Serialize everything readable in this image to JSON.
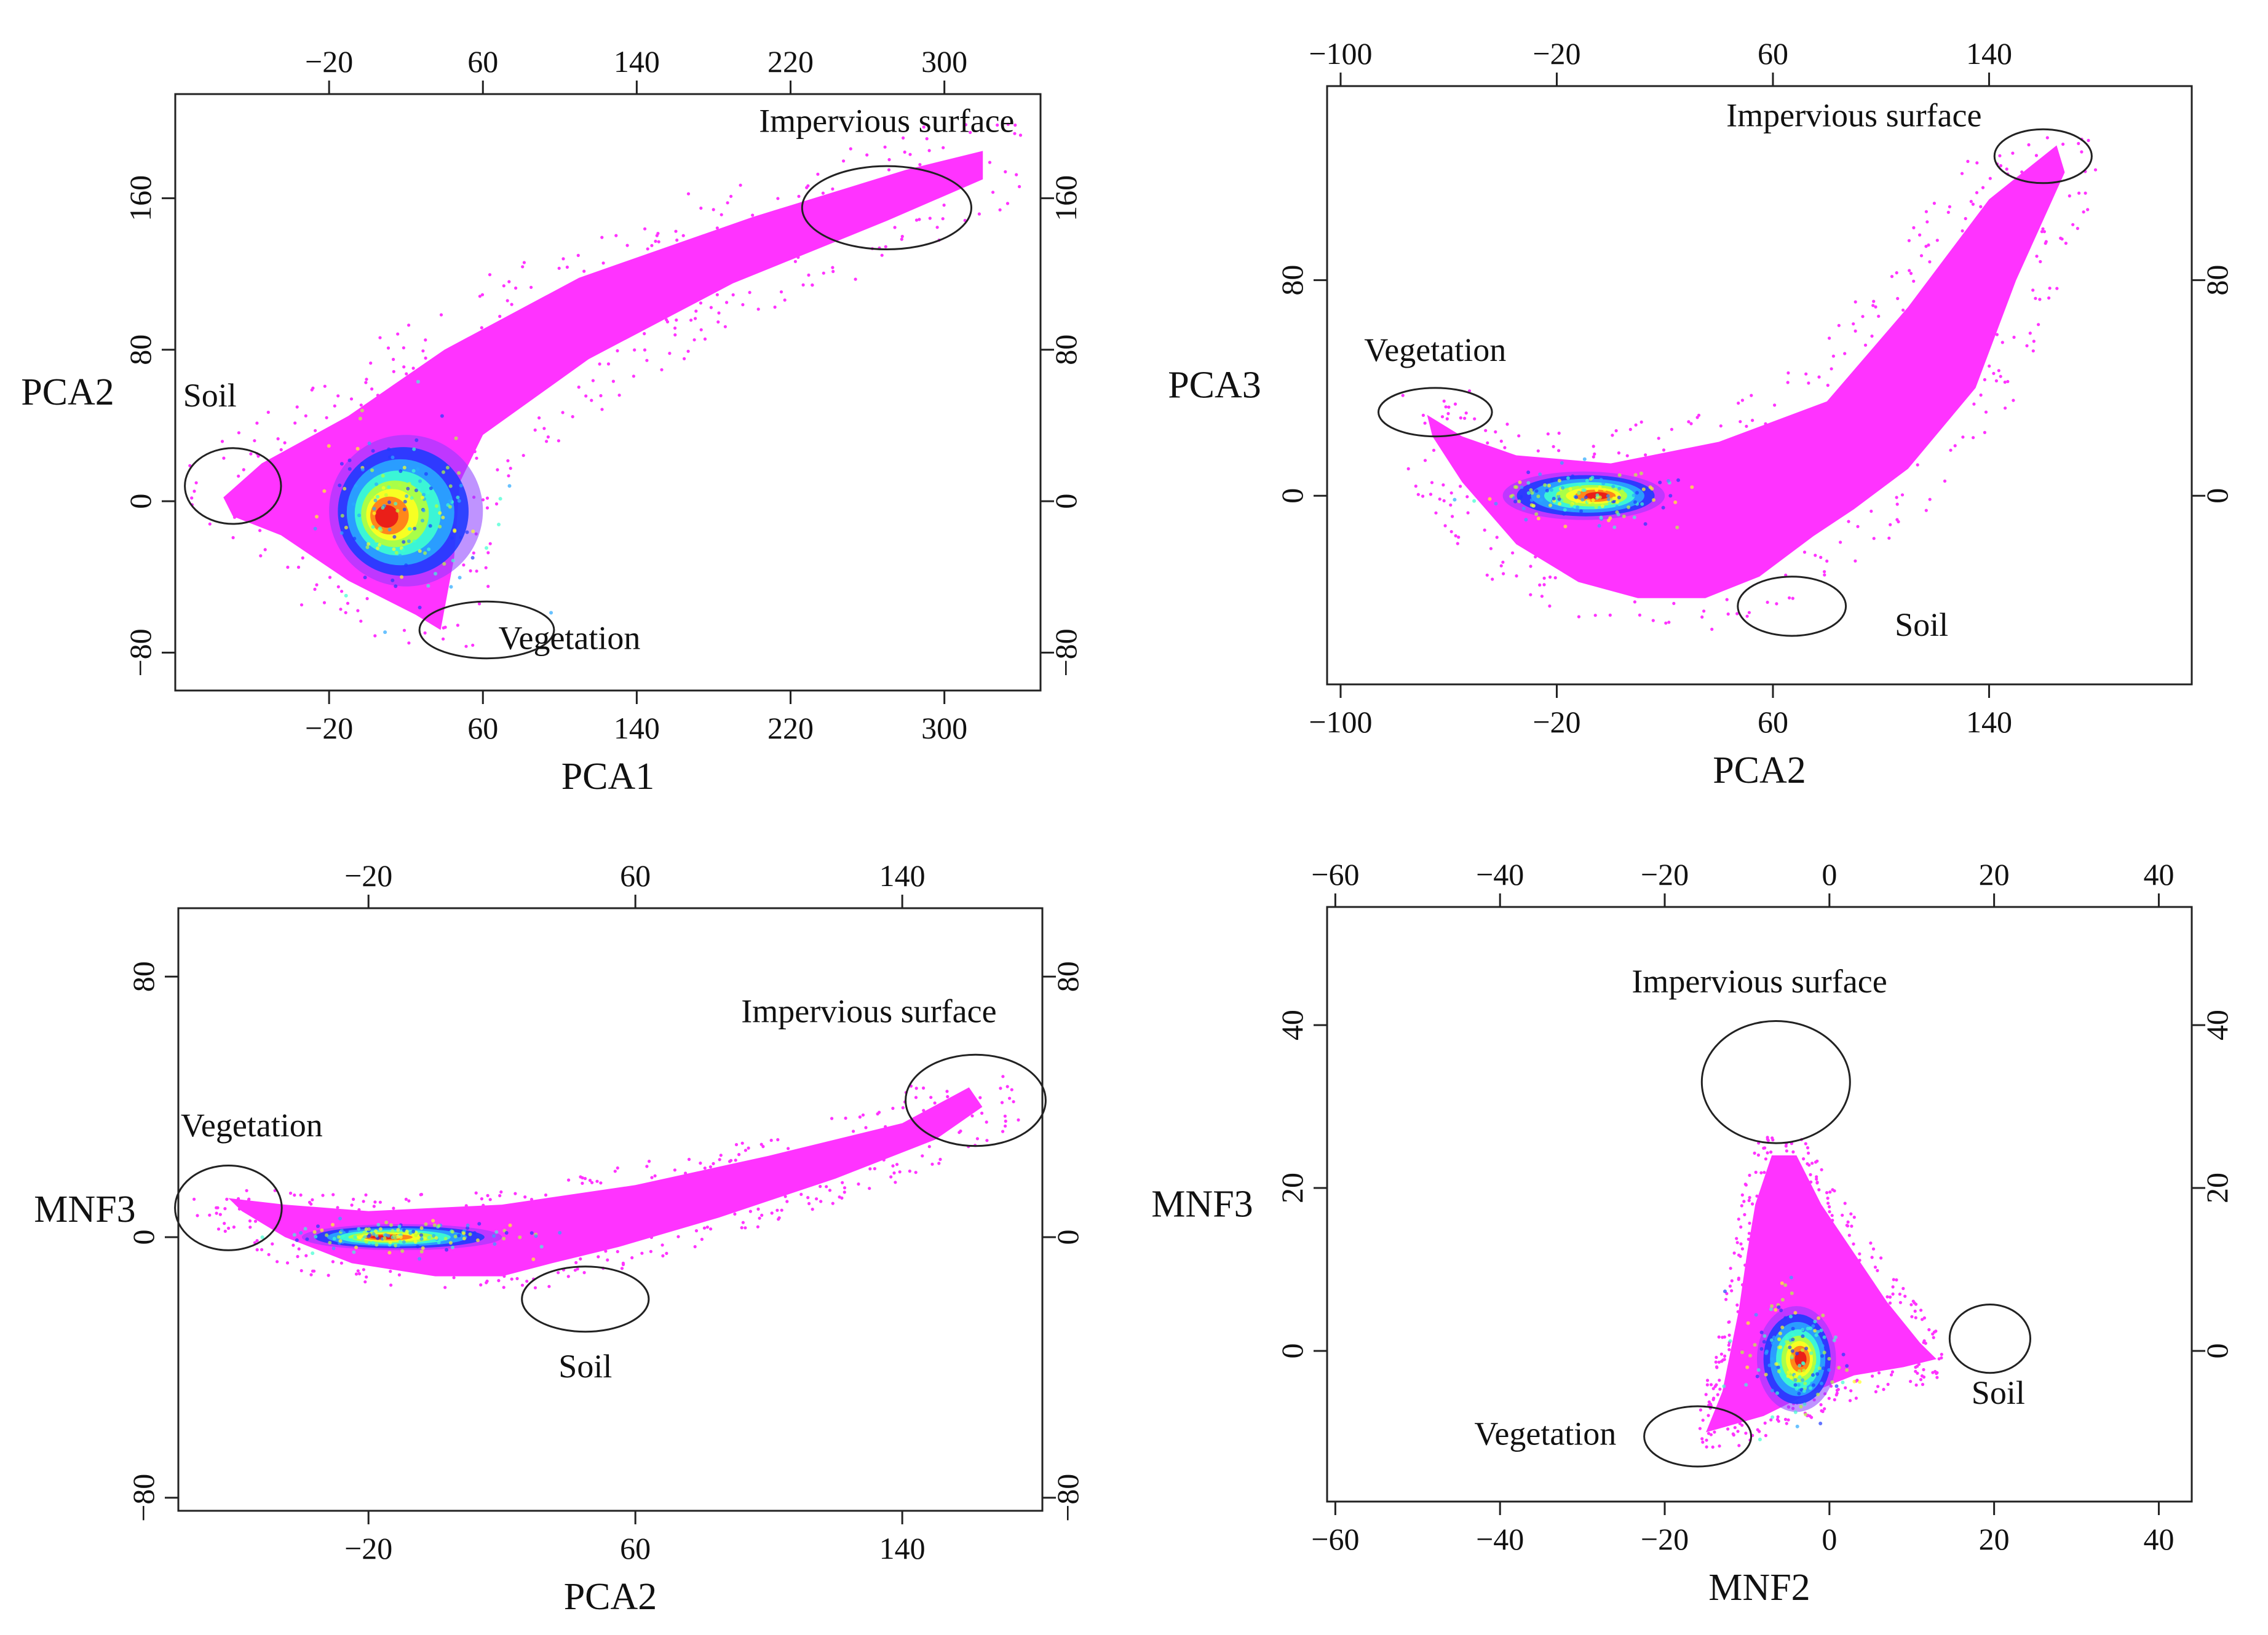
{
  "colors": {
    "density_scale": [
      "#ff33ff",
      "#8a3bff",
      "#1f3bff",
      "#2aa8ff",
      "#3dffd2",
      "#b6ff3a",
      "#ffff1f",
      "#ff7a1a",
      "#e8141a"
    ],
    "annotation_stroke": "#222222"
  },
  "chart_data": [
    {
      "type": "scatter",
      "subtype": "density-colored scatter",
      "xlabel": "PCA1",
      "ylabel": "PCA2",
      "xticks": [
        -20,
        60,
        140,
        220,
        300
      ],
      "yticks": [
        -80,
        0,
        80,
        160
      ],
      "xlim": [
        -100,
        350
      ],
      "ylim": [
        -100,
        215
      ],
      "grid": false,
      "cloud": {
        "main_polygon": [
          [
            -75,
            2
          ],
          [
            -55,
            20
          ],
          [
            -10,
            45
          ],
          [
            40,
            80
          ],
          [
            110,
            118
          ],
          [
            200,
            150
          ],
          [
            280,
            175
          ],
          [
            320,
            185
          ],
          [
            320,
            170
          ],
          [
            270,
            148
          ],
          [
            190,
            115
          ],
          [
            115,
            75
          ],
          [
            60,
            35
          ],
          [
            48,
            10
          ],
          [
            45,
            -30
          ],
          [
            38,
            -68
          ],
          [
            25,
            -60
          ],
          [
            -10,
            -42
          ],
          [
            -45,
            -18
          ],
          [
            -70,
            -8
          ]
        ],
        "core_ellipse": {
          "cx": 20,
          "cy": -5,
          "rx": 40,
          "ry": 40
        },
        "peak": [
          10,
          -8
        ]
      },
      "annotations": [
        {
          "label": "Soil",
          "ellipse": {
            "cx": -70,
            "cy": 8,
            "rx": 25,
            "ry": 20
          },
          "text_at": [
            -82,
            50
          ]
        },
        {
          "label": "Vegetation",
          "ellipse": {
            "cx": 62,
            "cy": -68,
            "rx": 35,
            "ry": 15
          },
          "text_at": [
            105,
            -78
          ]
        },
        {
          "label": "Impervious surface",
          "ellipse": {
            "cx": 270,
            "cy": 155,
            "rx": 44,
            "ry": 22
          },
          "text_at": [
            270,
            195
          ]
        }
      ]
    },
    {
      "type": "scatter",
      "subtype": "density-colored scatter",
      "xlabel": "PCA2",
      "ylabel": "PCA3",
      "xticks": [
        -100,
        -20,
        60,
        140
      ],
      "yticks": [
        0,
        80
      ],
      "xlim": [
        -105,
        215
      ],
      "ylim": [
        -70,
        152
      ],
      "grid": false,
      "cloud": {
        "main_polygon": [
          [
            -68,
            30
          ],
          [
            -55,
            22
          ],
          [
            -35,
            15
          ],
          [
            0,
            12
          ],
          [
            40,
            20
          ],
          [
            80,
            35
          ],
          [
            110,
            70
          ],
          [
            140,
            110
          ],
          [
            165,
            130
          ],
          [
            168,
            120
          ],
          [
            150,
            80
          ],
          [
            135,
            40
          ],
          [
            110,
            10
          ],
          [
            90,
            -5
          ],
          [
            75,
            -15
          ],
          [
            55,
            -30
          ],
          [
            35,
            -38
          ],
          [
            10,
            -38
          ],
          [
            -12,
            -32
          ],
          [
            -35,
            -18
          ],
          [
            -55,
            5
          ],
          [
            -66,
            22
          ]
        ],
        "core_ellipse": {
          "cx": -10,
          "cy": 0,
          "rx": 30,
          "ry": 9
        },
        "peak": [
          -5,
          0
        ]
      },
      "annotations": [
        {
          "label": "Vegetation",
          "ellipse": {
            "cx": -65,
            "cy": 31,
            "rx": 21,
            "ry": 9
          },
          "text_at": [
            -65,
            50
          ]
        },
        {
          "label": "Impervious surface",
          "ellipse": {
            "cx": 160,
            "cy": 126,
            "rx": 18,
            "ry": 10
          },
          "text_at": [
            90,
            137
          ]
        },
        {
          "label": "Soil",
          "ellipse": {
            "cx": 67,
            "cy": -41,
            "rx": 20,
            "ry": 11
          },
          "text_at": [
            115,
            -52
          ]
        }
      ]
    },
    {
      "type": "scatter",
      "subtype": "density-colored scatter",
      "xlabel": "PCA2",
      "ylabel": "MNF3",
      "xticks": [
        -20,
        60,
        140
      ],
      "yticks": [
        -80,
        0,
        80
      ],
      "xlim": [
        -77,
        182
      ],
      "ylim": [
        -84,
        101
      ],
      "grid": false,
      "cloud": {
        "main_polygon": [
          [
            -62,
            12
          ],
          [
            -45,
            10
          ],
          [
            -20,
            8
          ],
          [
            20,
            10
          ],
          [
            60,
            16
          ],
          [
            100,
            25
          ],
          [
            140,
            35
          ],
          [
            160,
            46
          ],
          [
            164,
            40
          ],
          [
            150,
            30
          ],
          [
            120,
            18
          ],
          [
            85,
            6
          ],
          [
            55,
            -3
          ],
          [
            35,
            -8
          ],
          [
            20,
            -12
          ],
          [
            0,
            -12
          ],
          [
            -25,
            -8
          ],
          [
            -45,
            0
          ],
          [
            -58,
            8
          ]
        ],
        "core_ellipse": {
          "cx": -10,
          "cy": 0,
          "rx": 30,
          "ry": 4
        },
        "peak": [
          -15,
          0
        ]
      },
      "annotations": [
        {
          "label": "Vegetation",
          "ellipse": {
            "cx": -62,
            "cy": 9,
            "rx": 16,
            "ry": 13
          },
          "text_at": [
            -55,
            31
          ]
        },
        {
          "label": "Soil",
          "ellipse": {
            "cx": 45,
            "cy": -19,
            "rx": 19,
            "ry": 10
          },
          "text_at": [
            45,
            -43
          ]
        },
        {
          "label": "Impervious surface",
          "ellipse": {
            "cx": 162,
            "cy": 42,
            "rx": 21,
            "ry": 14
          },
          "text_at": [
            130,
            66
          ]
        }
      ]
    },
    {
      "type": "scatter",
      "subtype": "density-colored scatter",
      "xlabel": "MNF2",
      "ylabel": "MNF3",
      "xticks": [
        -60,
        -40,
        -20,
        0,
        20,
        40
      ],
      "yticks": [
        0,
        20,
        40
      ],
      "xlim": [
        -61,
        44
      ],
      "ylim": [
        -18.5,
        54.5
      ],
      "grid": false,
      "cloud": {
        "main_polygon": [
          [
            -15,
            -10
          ],
          [
            -13,
            -5
          ],
          [
            -11,
            5
          ],
          [
            -10,
            12
          ],
          [
            -9,
            18
          ],
          [
            -7,
            24
          ],
          [
            -4,
            24
          ],
          [
            -1,
            18
          ],
          [
            3,
            12
          ],
          [
            7,
            6
          ],
          [
            11,
            1
          ],
          [
            13,
            -1
          ],
          [
            9,
            -2
          ],
          [
            3,
            -3
          ],
          [
            -2,
            -5
          ],
          [
            -8,
            -8
          ]
        ],
        "core_ellipse": {
          "cx": -4,
          "cy": -1,
          "rx": 4.8,
          "ry": 6.5
        },
        "peak": [
          -3.5,
          -1
        ]
      },
      "annotations": [
        {
          "label": "Impervious surface",
          "ellipse": {
            "cx": -6.5,
            "cy": 33,
            "rx": 9,
            "ry": 7.5
          },
          "text_at": [
            -8.5,
            44
          ]
        },
        {
          "label": "Soil",
          "ellipse": {
            "cx": 19.5,
            "cy": 1.5,
            "rx": 4.9,
            "ry": 4.2
          },
          "text_at": [
            20.5,
            -6.5
          ]
        },
        {
          "label": "Vegetation",
          "ellipse": {
            "cx": -16,
            "cy": -10.5,
            "rx": 6.5,
            "ry": 3.7
          },
          "text_at": [
            -34.5,
            -11.5
          ]
        }
      ]
    }
  ]
}
